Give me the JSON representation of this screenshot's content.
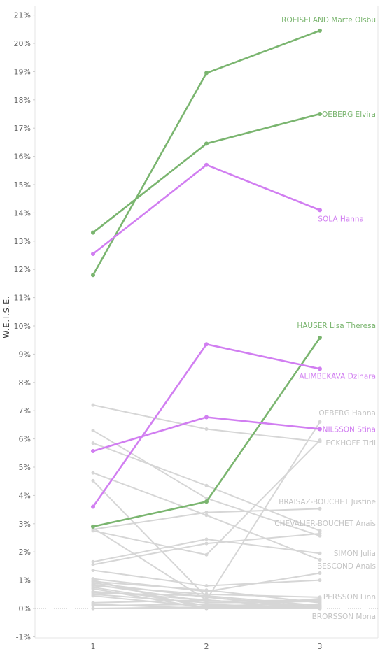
{
  "chart_data": {
    "type": "line",
    "xlabel": "",
    "ylabel": "W.E.I.S.E.",
    "x": [
      1,
      2,
      3
    ],
    "xlim": [
      0.75,
      3.25
    ],
    "ylim": [
      -1.2,
      21.3
    ],
    "yticks": [
      -1,
      0,
      1,
      2,
      3,
      4,
      5,
      6,
      7,
      8,
      9,
      10,
      11,
      12,
      13,
      14,
      15,
      16,
      17,
      18,
      19,
      20,
      21
    ],
    "ytick_suffix": "%",
    "grid": "vertical-only",
    "zero_line": "dotted",
    "colors": {
      "green": "#7ab56f",
      "purple": "#d17ef1",
      "grey": "#d6d6d6"
    },
    "highlighted": [
      {
        "name": "ROEISELAND Marte Olsbu",
        "color": "green",
        "values": [
          11.8,
          18.95,
          20.45
        ]
      },
      {
        "name": "OEBERG Elvira",
        "color": "green",
        "values": [
          13.3,
          16.45,
          17.5
        ]
      },
      {
        "name": "SOLA Hanna",
        "color": "purple",
        "values": [
          12.55,
          15.7,
          14.1
        ]
      },
      {
        "name": "HAUSER Lisa Theresa",
        "color": "green",
        "values": [
          2.9,
          3.78,
          9.58
        ]
      },
      {
        "name": "ALIMBEKAVA Dzinara",
        "color": "purple",
        "values": [
          3.6,
          9.35,
          8.48
        ]
      },
      {
        "name": "NILSSON Stina",
        "color": "purple",
        "values": [
          5.57,
          6.77,
          6.35
        ]
      }
    ],
    "labeled_grey": [
      {
        "name": "OEBERG Hanna",
        "values": [
          2.85,
          0.3,
          6.6
        ]
      },
      {
        "name": "ECKHOFF Tiril",
        "values": [
          7.2,
          6.35,
          5.9
        ]
      },
      {
        "name": "BRAISAZ-BOUCHET Justine",
        "values": [
          2.8,
          3.4,
          3.53
        ]
      },
      {
        "name": "CHEVALIER-BOUCHET Anais",
        "values": [
          6.3,
          3.9,
          2.57
        ]
      },
      {
        "name": "SIMON Julia",
        "values": [
          1.65,
          2.45,
          1.95
        ]
      },
      {
        "name": "BESCOND Anais",
        "values": [
          4.8,
          3.3,
          1.72
        ]
      },
      {
        "name": "PERSSON Linn",
        "values": [
          0.8,
          0.5,
          0.4
        ]
      },
      {
        "name": "BRORSSON Mona",
        "values": [
          0.6,
          0.3,
          0.0
        ]
      }
    ],
    "grey_series": [
      [
        5.85,
        4.35,
        2.75
      ],
      [
        4.52,
        0.4,
        0.02
      ],
      [
        2.75,
        1.9,
        5.95
      ],
      [
        1.55,
        2.3,
        2.65
      ],
      [
        1.35,
        0.8,
        1.0
      ],
      [
        1.05,
        0.6,
        1.25
      ],
      [
        1.0,
        0.0,
        0.35
      ],
      [
        0.95,
        0.65,
        0.2
      ],
      [
        0.9,
        0.4,
        0.05
      ],
      [
        0.85,
        0.25,
        0.3
      ],
      [
        0.75,
        0.1,
        0.15
      ],
      [
        0.7,
        0.0,
        0.0
      ],
      [
        0.55,
        0.45,
        0.1
      ],
      [
        0.5,
        0.2,
        0.25
      ],
      [
        0.45,
        0.05,
        0.05
      ],
      [
        0.2,
        0.3,
        0.0
      ],
      [
        0.15,
        0.0,
        0.1
      ],
      [
        0.1,
        0.15,
        0.0
      ],
      [
        0.0,
        0.0,
        0.0
      ],
      [
        0.0,
        0.05,
        0.05
      ]
    ]
  }
}
